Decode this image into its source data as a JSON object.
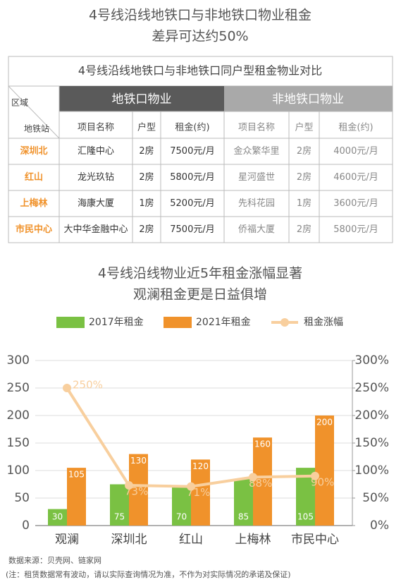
{
  "header": {
    "title": [
      "4号线沿线地铁口与非地铁口物业租金",
      "差异可达约50%"
    ]
  },
  "table": {
    "title": "4号线沿线地铁口与非地铁口同户型租金物业对比",
    "corner": [
      "区域",
      "地铁站"
    ],
    "groups": [
      "地铁口物业",
      "非地铁口物业"
    ],
    "columns": [
      "项目名称",
      "户型",
      "租金(约)",
      "项目名称",
      "户型",
      "租金(约)"
    ],
    "rows": [
      [
        "深圳北",
        "汇隆中心",
        "2房",
        "7500元/月",
        "金众繁华里",
        "2房",
        "4000元/月"
      ],
      [
        "红山",
        "龙光玖钻",
        "2房",
        "5800元/月",
        "星河盛世",
        "2房",
        "4600元/月"
      ],
      [
        "上梅林",
        "海康大厦",
        "1房",
        "5200元/月",
        "先科花园",
        "1房",
        "3600元/月"
      ],
      [
        "市民中心",
        "大中华金融中心",
        "2房",
        "7500元/月",
        "侨福大厦",
        "2房",
        "5800元/月"
      ]
    ]
  },
  "chart_data": {
    "type": "bar",
    "title": [
      "4号线沿线物业近5年租金涨幅显著",
      "观澜租金更是日益俱增"
    ],
    "categories": [
      "观澜",
      "深圳北",
      "红山",
      "上梅林",
      "市民中心"
    ],
    "series": [
      {
        "name": "2017年租金",
        "color": "#7ac143",
        "values": [
          30,
          75,
          70,
          85,
          105
        ]
      },
      {
        "name": "2021年租金",
        "color": "#f0922b",
        "values": [
          105,
          130,
          120,
          160,
          200
        ]
      },
      {
        "name": "租金涨幅",
        "color": "#f8cf9e",
        "type": "line",
        "axis": "y2",
        "values": [
          250,
          73,
          71,
          88,
          90
        ],
        "value_labels": [
          "250%",
          "73%",
          "71%",
          "88%",
          "90%"
        ]
      }
    ],
    "ylim": [
      0,
      300
    ],
    "yticks": [
      0,
      50,
      100,
      150,
      200,
      250,
      300
    ],
    "y2lim": [
      0,
      300
    ],
    "y2ticks": [
      {
        "value": 0,
        "label": "0%"
      },
      {
        "value": 50,
        "label": "50%"
      },
      {
        "value": 100,
        "label": "100%"
      },
      {
        "value": 150,
        "label": "150%"
      },
      {
        "value": 200,
        "label": "200%"
      },
      {
        "value": 250,
        "label": "250%"
      },
      {
        "value": 300,
        "label": "300%"
      }
    ],
    "grid": true
  },
  "footer": {
    "source": "数据来源：贝壳网、链家网",
    "note": "(注：租赁数据常有波动，请以实际查询情况为准，不作为对实际情况的承诺及保证)"
  }
}
